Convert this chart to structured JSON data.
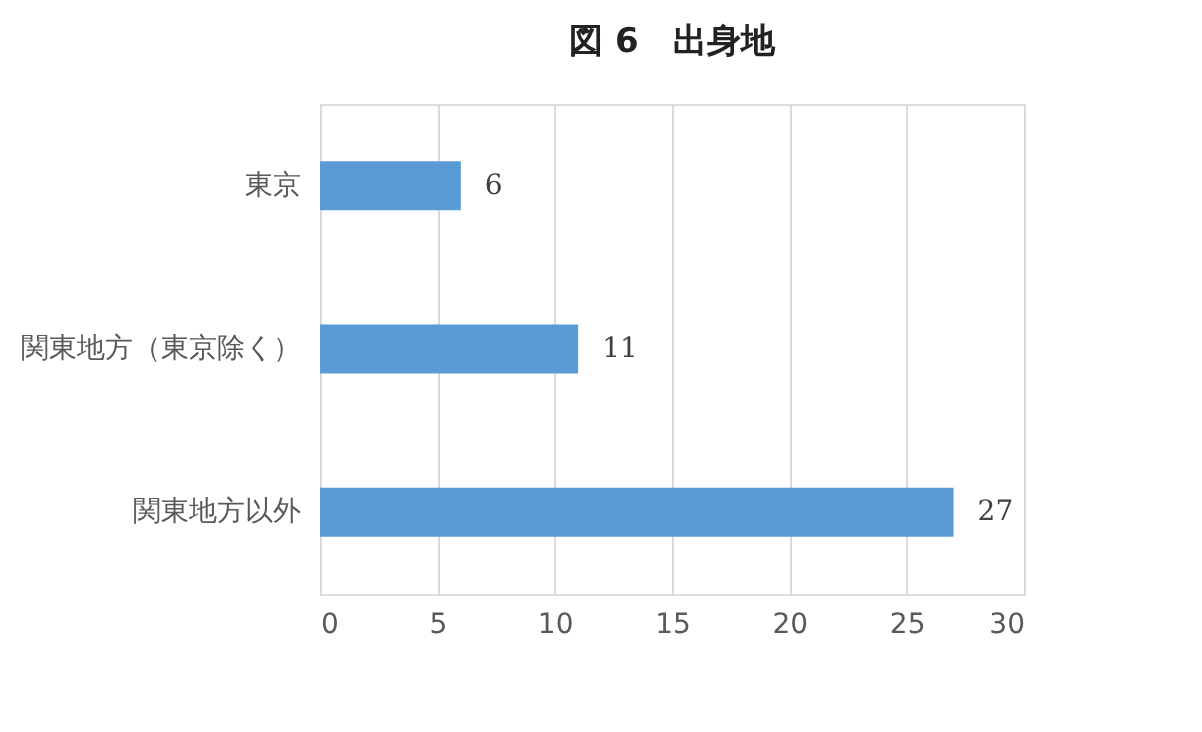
{
  "chart_data": {
    "type": "bar",
    "orientation": "horizontal",
    "title": "図 6　出身地",
    "categories": [
      "東京",
      "関東地方（東京除く）",
      "関東地方以外"
    ],
    "values": [
      6,
      11,
      27
    ],
    "color": "#5b9bd5",
    "xlim": [
      0,
      30
    ],
    "xticks": [
      0,
      5,
      10,
      15,
      20,
      25,
      30
    ],
    "grid": "x",
    "data_labels": true
  }
}
